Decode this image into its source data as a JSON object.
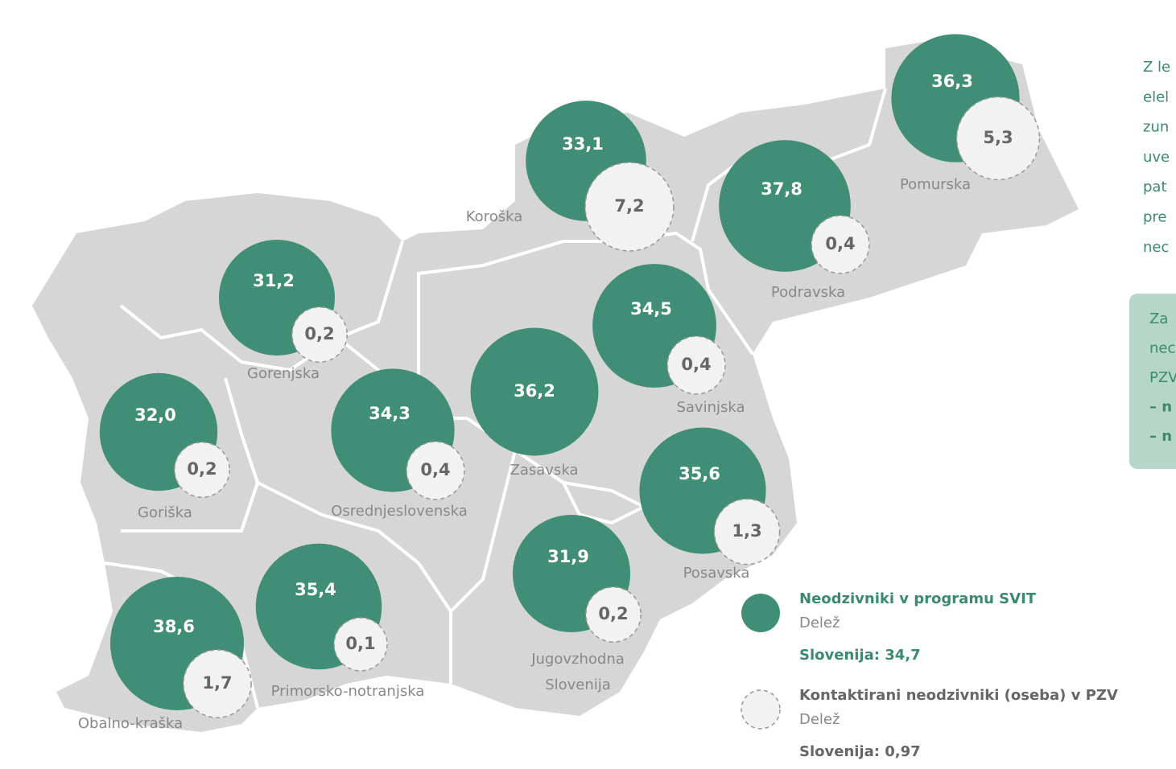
{
  "regions": [
    {
      "name": "Pomurska",
      "share": {
        "value": 36.3,
        "label": "36,3"
      },
      "contacted": {
        "value": 5.3,
        "label": "5,3"
      }
    },
    {
      "name": "Koroška",
      "share": {
        "value": 33.1,
        "label": "33,1"
      },
      "contacted": {
        "value": 7.2,
        "label": "7,2"
      }
    },
    {
      "name": "Podravska",
      "share": {
        "value": 37.8,
        "label": "37,8"
      },
      "contacted": {
        "value": 0.4,
        "label": "0,4"
      }
    },
    {
      "name": "Gorenjska",
      "share": {
        "value": 31.2,
        "label": "31,2"
      },
      "contacted": {
        "value": 0.2,
        "label": "0,2"
      }
    },
    {
      "name": "Savinjska",
      "share": {
        "value": 34.5,
        "label": "34,5"
      },
      "contacted": {
        "value": 0.4,
        "label": "0,4"
      }
    },
    {
      "name": "Zasavska",
      "share": {
        "value": 36.2,
        "label": "36,2"
      },
      "contacted": null
    },
    {
      "name": "Goriška",
      "share": {
        "value": 32.0,
        "label": "32,0"
      },
      "contacted": {
        "value": 0.2,
        "label": "0,2"
      }
    },
    {
      "name": "Osrednjeslovenska",
      "share": {
        "value": 34.3,
        "label": "34,3"
      },
      "contacted": {
        "value": 0.4,
        "label": "0,4"
      }
    },
    {
      "name": "Posavska",
      "share": {
        "value": 35.6,
        "label": "35,6"
      },
      "contacted": {
        "value": 1.3,
        "label": "1,3"
      }
    },
    {
      "name": [
        "Jugovzhodna",
        "Slovenija"
      ],
      "share": {
        "value": 31.9,
        "label": "31,9"
      },
      "contacted": {
        "value": 0.2,
        "label": "0,2"
      }
    },
    {
      "name": "Primorsko-notranjska",
      "share": {
        "value": 35.4,
        "label": "35,4"
      },
      "contacted": {
        "value": 0.1,
        "label": "0,1"
      }
    },
    {
      "name": "Obalno-kraška",
      "share": {
        "value": 38.6,
        "label": "38,6"
      },
      "contacted": {
        "value": 1.7,
        "label": "1,7"
      }
    }
  ],
  "legend": [
    {
      "title": "Neodzivniki v programu SVIT",
      "subtitle": "Delež",
      "total": "Slovenija: 34,7"
    },
    {
      "title": "Kontaktirani neodzivniki (oseba) v PZV",
      "subtitle": "Delež",
      "total": "Slovenija: 0,97"
    }
  ],
  "side_text": [
    "Z le",
    "elel",
    "zun",
    "uve",
    "pat",
    "pre",
    "nec"
  ],
  "side_box": [
    "Za",
    "nec",
    "PZV",
    "– n",
    "– n"
  ]
}
